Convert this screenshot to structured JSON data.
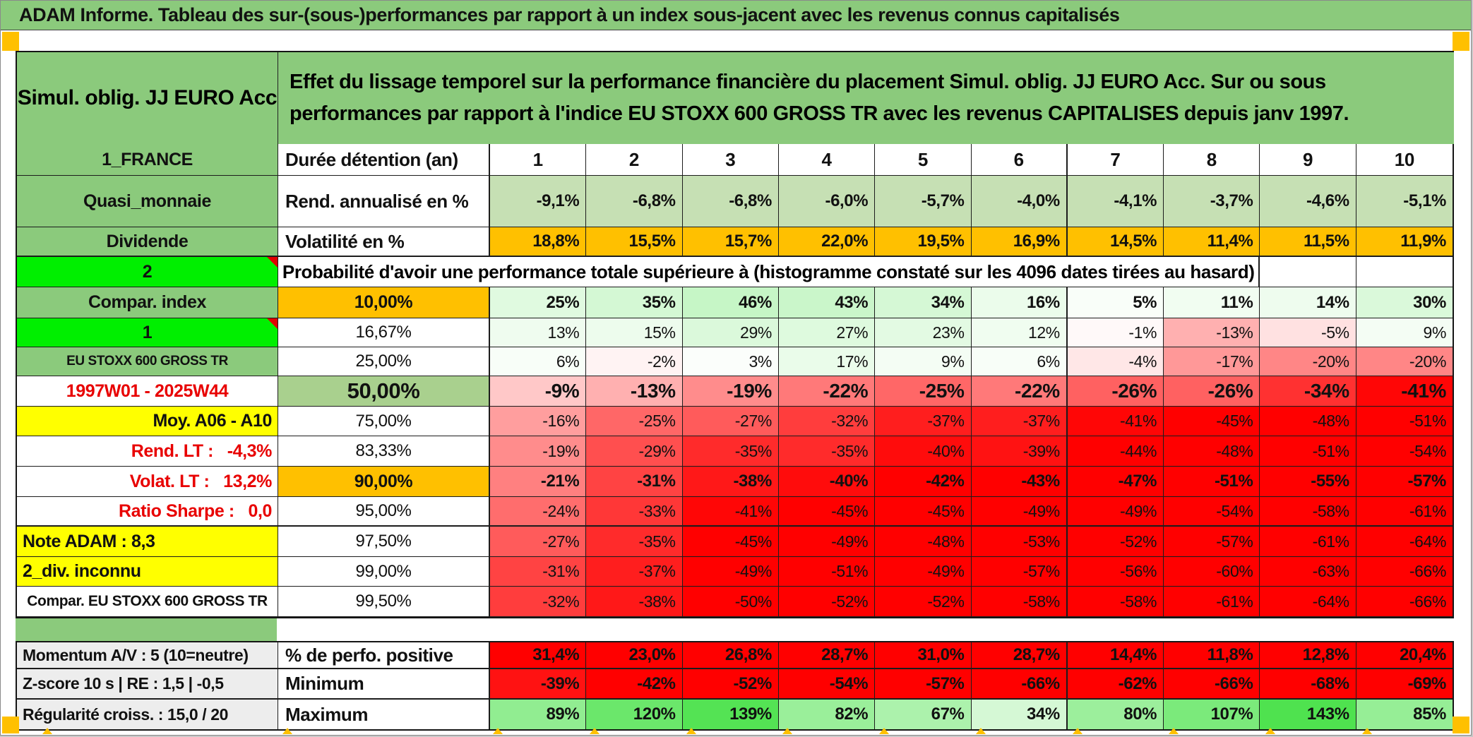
{
  "title": "ADAM Informe. Tableau des sur-(sous-)performances par rapport à un index sous-jacent avec les revenus connus capitalisés",
  "header": {
    "product": "Simul. oblig. JJ EURO Acc",
    "description": "Effet du lissage temporel sur la performance financière du placement Simul. oblig. JJ EURO Acc. Sur ou sous performances par rapport à l'indice EU STOXX 600 GROSS TR avec les revenus CAPITALISES depuis janv 1997."
  },
  "columns": [
    "1",
    "2",
    "3",
    "4",
    "5",
    "6",
    "7",
    "8",
    "9",
    "10"
  ],
  "colors": {
    "green_header": "#8bca7c",
    "green_bright": "#00ef00",
    "green_cell": "#a9d08e",
    "light_green_row": "#c6e0b4",
    "orange": "#ffc000",
    "yellow": "#ffff00",
    "gray_label": "#ededed",
    "red": "#ff0000"
  },
  "table": {
    "rows": [
      {
        "kind": "cols",
        "c1": {
          "t": "1_FRANCE",
          "style": "green"
        },
        "c2": {
          "t": "Durée détention (an)",
          "style": "plain"
        }
      },
      {
        "kind": "vals",
        "c1": {
          "t": "Quasi_monnaie",
          "style": "green"
        },
        "c2": {
          "t": "Rend. annualisé en %",
          "style": "plain"
        },
        "fill": "lightgreen",
        "bold": true,
        "values": [
          "-9,1%",
          "-6,8%",
          "-6,8%",
          "-6,0%",
          "-5,7%",
          "-4,0%",
          "-4,1%",
          "-3,7%",
          "-4,6%",
          "-5,1%"
        ]
      },
      {
        "kind": "vals",
        "c1": {
          "t": "Dividende",
          "style": "green"
        },
        "c2": {
          "t": "Volatilité en %",
          "style": "plain"
        },
        "fill": "orange",
        "bold": true,
        "values": [
          "18,8%",
          "15,5%",
          "15,7%",
          "22,0%",
          "19,5%",
          "16,9%",
          "14,5%",
          "11,4%",
          "11,5%",
          "11,9%"
        ]
      },
      {
        "kind": "span",
        "c1": {
          "t": "2",
          "style": "bright",
          "corner": true
        },
        "span_text": "Probabilité d'avoir une performance totale supérieure à (histogramme constaté sur les 4096 dates tirées au hasard)"
      },
      {
        "kind": "vals",
        "c1": {
          "t": "Compar. index",
          "style": "green"
        },
        "c2": {
          "t": "10,00%",
          "style": "orange-center"
        },
        "fill": "scale",
        "bold": true,
        "values": [
          "25%",
          "35%",
          "46%",
          "43%",
          "34%",
          "16%",
          "5%",
          "11%",
          "14%",
          "30%"
        ]
      },
      {
        "kind": "vals",
        "c1": {
          "t": "1",
          "style": "bright",
          "corner": true
        },
        "c2": {
          "t": "16,67%",
          "style": "center"
        },
        "fill": "scale",
        "values": [
          "13%",
          "15%",
          "29%",
          "27%",
          "23%",
          "12%",
          "-1%",
          "-13%",
          "-5%",
          "9%"
        ]
      },
      {
        "kind": "vals",
        "c1": {
          "t": "EU STOXX 600 GROSS TR",
          "style": "green small"
        },
        "c2": {
          "t": "25,00%",
          "style": "center"
        },
        "fill": "scale",
        "values": [
          "6%",
          "-2%",
          "3%",
          "17%",
          "9%",
          "6%",
          "-4%",
          "-17%",
          "-20%",
          "-20%"
        ]
      },
      {
        "kind": "vals",
        "c1": {
          "t": "1997W01 - 2025W44",
          "style": "red-label"
        },
        "c2": {
          "t": "50,00%",
          "style": "greencell"
        },
        "fill": "scale",
        "big": true,
        "values": [
          "-9%",
          "-13%",
          "-19%",
          "-22%",
          "-25%",
          "-22%",
          "-26%",
          "-26%",
          "-34%",
          "-41%"
        ]
      },
      {
        "kind": "vals",
        "c1": {
          "t": "Moy. A06 - A10",
          "style": "yellow right"
        },
        "c2": {
          "t": "75,00%",
          "style": "center"
        },
        "fill": "scale",
        "values": [
          "-16%",
          "-25%",
          "-27%",
          "-32%",
          "-37%",
          "-37%",
          "-41%",
          "-45%",
          "-48%",
          "-51%"
        ]
      },
      {
        "kind": "vals",
        "c1": {
          "t": "Rend. LT :   -4,3%",
          "style": "red-label right"
        },
        "c2": {
          "t": "83,33%",
          "style": "center"
        },
        "fill": "scale",
        "values": [
          "-19%",
          "-29%",
          "-35%",
          "-35%",
          "-40%",
          "-39%",
          "-44%",
          "-48%",
          "-51%",
          "-54%"
        ]
      },
      {
        "kind": "vals",
        "c1": {
          "t": "Volat. LT :   13,2%",
          "style": "red-label right"
        },
        "c2": {
          "t": "90,00%",
          "style": "orange-center"
        },
        "fill": "scale",
        "bold": true,
        "values": [
          "-21%",
          "-31%",
          "-38%",
          "-40%",
          "-42%",
          "-43%",
          "-47%",
          "-51%",
          "-55%",
          "-57%"
        ]
      },
      {
        "kind": "vals",
        "c1": {
          "t": "Ratio Sharpe :   0,0",
          "style": "red-label right"
        },
        "c2": {
          "t": "95,00%",
          "style": "center"
        },
        "fill": "scale",
        "values": [
          "-24%",
          "-33%",
          "-41%",
          "-45%",
          "-45%",
          "-49%",
          "-49%",
          "-54%",
          "-58%",
          "-61%"
        ]
      },
      {
        "kind": "vals",
        "c1": {
          "t": "Note ADAM : 8,3",
          "style": "yellow left"
        },
        "c2": {
          "t": "97,50%",
          "style": "center"
        },
        "fill": "scale",
        "values": [
          "-27%",
          "-35%",
          "-45%",
          "-49%",
          "-48%",
          "-53%",
          "-52%",
          "-57%",
          "-61%",
          "-64%"
        ]
      },
      {
        "kind": "vals",
        "c1": {
          "t": "2_div. inconnu",
          "style": "yellow left"
        },
        "c2": {
          "t": "99,00%",
          "style": "center"
        },
        "fill": "scale",
        "values": [
          "-31%",
          "-37%",
          "-49%",
          "-51%",
          "-49%",
          "-57%",
          "-56%",
          "-60%",
          "-63%",
          "-66%"
        ]
      },
      {
        "kind": "vals",
        "c1": {
          "t": "Compar. EU STOXX 600 GROSS TR",
          "style": "small-bold"
        },
        "c2": {
          "t": "99,50%",
          "style": "center"
        },
        "fill": "scale",
        "values": [
          "-32%",
          "-38%",
          "-50%",
          "-52%",
          "-52%",
          "-58%",
          "-58%",
          "-61%",
          "-64%",
          "-66%"
        ]
      },
      {
        "kind": "spacer"
      },
      {
        "kind": "vals",
        "c1": {
          "t": "Momentum A/V : 5 (10=neutre)",
          "style": "gray left"
        },
        "c2": {
          "t": "% de perfo. positive",
          "style": "plain"
        },
        "fill": "red",
        "bold": true,
        "values": [
          "31,4%",
          "23,0%",
          "26,8%",
          "28,7%",
          "31,0%",
          "28,7%",
          "14,4%",
          "11,8%",
          "12,8%",
          "20,4%"
        ]
      },
      {
        "kind": "vals",
        "c1": {
          "t": "Z-score 10 s | RE : 1,5 | -0,5",
          "style": "gray left"
        },
        "c2": {
          "t": "Minimum",
          "style": "plain"
        },
        "fill": "scale",
        "bold": true,
        "values": [
          "-39%",
          "-42%",
          "-52%",
          "-54%",
          "-57%",
          "-66%",
          "-62%",
          "-66%",
          "-68%",
          "-69%"
        ]
      },
      {
        "kind": "vals",
        "c1": {
          "t": "Régularité croiss. : 15,0 / 20",
          "style": "gray left"
        },
        "c2": {
          "t": "Maximum",
          "style": "plain"
        },
        "fill": "scale",
        "bold": true,
        "values": [
          "89%",
          "120%",
          "139%",
          "82%",
          "67%",
          "34%",
          "80%",
          "107%",
          "143%",
          "85%"
        ]
      }
    ]
  }
}
